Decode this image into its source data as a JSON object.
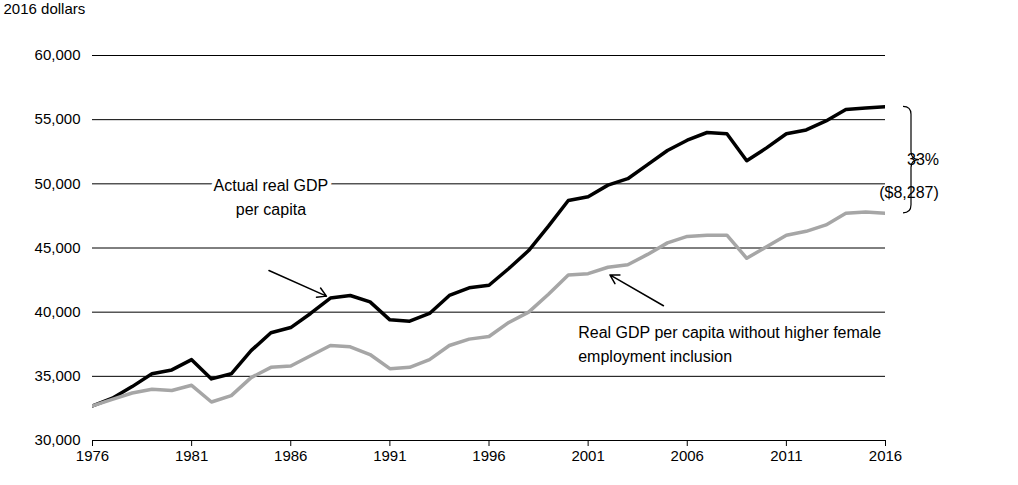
{
  "chart_data": {
    "type": "line",
    "y_label": "2016 dollars",
    "x": [
      1976,
      1977,
      1978,
      1979,
      1980,
      1981,
      1982,
      1983,
      1984,
      1985,
      1986,
      1987,
      1988,
      1989,
      1990,
      1991,
      1992,
      1993,
      1994,
      1995,
      1996,
      1997,
      1998,
      1999,
      2000,
      2001,
      2002,
      2003,
      2004,
      2005,
      2006,
      2007,
      2008,
      2009,
      2010,
      2011,
      2012,
      2013,
      2014,
      2015,
      2016
    ],
    "series": [
      {
        "name": "Actual real GDP\nper capita",
        "color": "#000000",
        "values": [
          32700,
          33300,
          34200,
          35200,
          35500,
          36300,
          34800,
          35200,
          37000,
          38400,
          38800,
          39900,
          41100,
          41300,
          40800,
          39400,
          39300,
          39900,
          41300,
          41900,
          42100,
          43400,
          44800,
          46700,
          48700,
          49000,
          49900,
          50400,
          51500,
          52600,
          53400,
          54000,
          53900,
          51800,
          52800,
          53900,
          54200,
          54900,
          55800,
          55900,
          56000
        ]
      },
      {
        "name": "Real GDP per capita without higher female\nemployment inclusion",
        "color": "#a6a6a6",
        "values": [
          32700,
          33200,
          33700,
          34000,
          33900,
          34300,
          33000,
          33500,
          34900,
          35700,
          35800,
          36600,
          37400,
          37300,
          36700,
          35600,
          35700,
          36300,
          37400,
          37900,
          38100,
          39200,
          40000,
          41400,
          42900,
          43000,
          43500,
          43700,
          44500,
          45400,
          45900,
          46000,
          46000,
          44200,
          45100,
          46000,
          46300,
          46800,
          47700,
          47800,
          47700
        ]
      }
    ],
    "xlim": [
      1976,
      2016
    ],
    "ylim": [
      30000,
      60000
    ],
    "xticks": [
      1976,
      1981,
      1986,
      1991,
      1996,
      2001,
      2006,
      2011,
      2016
    ],
    "yticks": [
      {
        "value": 30000,
        "label": "30,000"
      },
      {
        "value": 35000,
        "label": "35,000"
      },
      {
        "value": 40000,
        "label": "40,000"
      },
      {
        "value": 45000,
        "label": "45,000"
      },
      {
        "value": 50000,
        "label": "50,000"
      },
      {
        "value": 55000,
        "label": "55,000"
      },
      {
        "value": 60000,
        "label": "60,000"
      }
    ],
    "grid": true,
    "gap_labels": [
      "33%",
      "($8,287)"
    ]
  }
}
